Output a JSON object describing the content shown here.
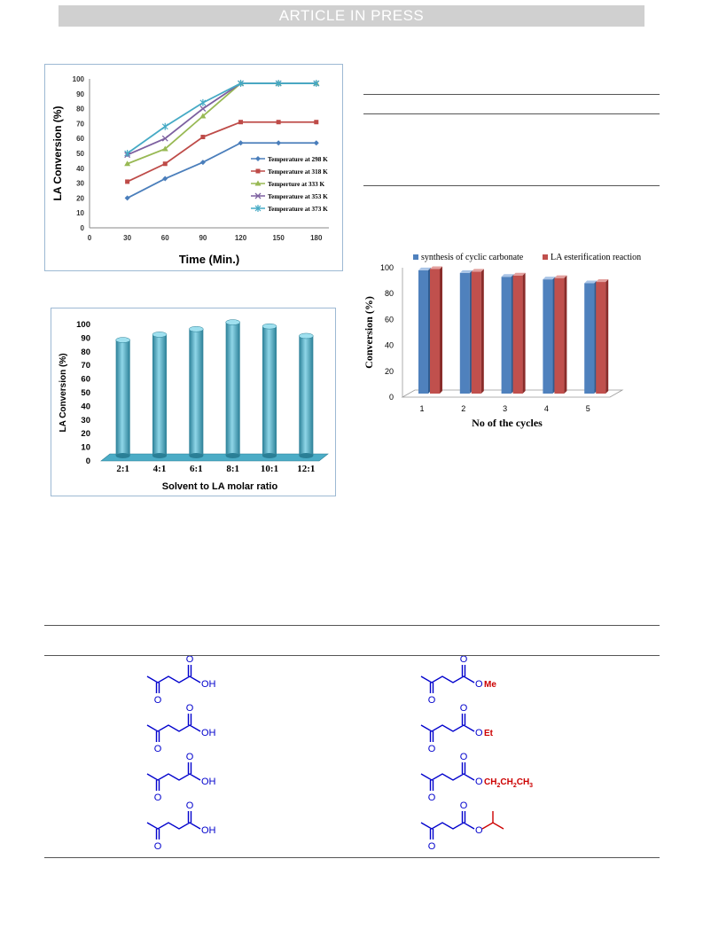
{
  "header": {
    "banner": "ARTICLE IN PRESS"
  },
  "chart_data": [
    {
      "type": "line",
      "xlabel": "Time (Min.)",
      "ylabel": "LA  Conversion (%)",
      "xlim": [
        0,
        190
      ],
      "ylim": [
        0,
        100
      ],
      "x": [
        30,
        60,
        90,
        120,
        150,
        180
      ],
      "xticks": [
        0,
        30,
        60,
        90,
        120,
        150,
        180
      ],
      "yticks": [
        0,
        10,
        20,
        30,
        40,
        50,
        60,
        70,
        80,
        90,
        100
      ],
      "legend_position": "center-right",
      "series": [
        {
          "name": "Temperature at 298 K",
          "color": "#4a7ebb",
          "marker": "diamond",
          "values": [
            20,
            33,
            44,
            57,
            57,
            57
          ]
        },
        {
          "name": "Temperature at 318 K",
          "color": "#be4b48",
          "marker": "square",
          "values": [
            31,
            43,
            61,
            71,
            71,
            71
          ]
        },
        {
          "name": "Temperture at 333 K",
          "color": "#98b954",
          "marker": "triangle",
          "values": [
            43,
            53,
            75,
            97,
            97,
            97
          ]
        },
        {
          "name": "Temperature at 353 K",
          "color": "#7d60a0",
          "marker": "x",
          "values": [
            49,
            60,
            80,
            97,
            97,
            97
          ]
        },
        {
          "name": "Temperature at 373 K",
          "color": "#46aac5",
          "marker": "star",
          "values": [
            50,
            68,
            84,
            97,
            97,
            97
          ]
        }
      ]
    },
    {
      "type": "bar",
      "xlabel": "Solvent to LA molar ratio",
      "ylabel": "LA Conversion (%)",
      "ylim": [
        0,
        100
      ],
      "yticks": [
        0,
        10,
        20,
        30,
        40,
        50,
        60,
        70,
        80,
        90,
        100
      ],
      "categories": [
        "2:1",
        "4:1",
        "6:1",
        "8:1",
        "10:1",
        "12:1"
      ],
      "values": [
        86,
        90,
        94,
        99,
        96,
        89
      ],
      "color": "#4bacc6"
    },
    {
      "type": "bar",
      "xlabel": "No of the cycles",
      "ylabel": "Conversion (%)",
      "ylim": [
        0,
        100
      ],
      "yticks": [
        0,
        20,
        40,
        60,
        80,
        100
      ],
      "categories": [
        "1",
        "2",
        "3",
        "4",
        "5"
      ],
      "legend_position": "top",
      "series": [
        {
          "name": "synthesis of cyclic carbonate",
          "color": "#4f81bd",
          "values": [
            98,
            96,
            93,
            91,
            88
          ]
        },
        {
          "name": "LA esterification reaction",
          "color": "#c0504d",
          "values": [
            99,
            97,
            94,
            92,
            89
          ]
        }
      ]
    }
  ],
  "structures": {
    "acid_label": "OH",
    "carbonyl_o": "O",
    "ester_o": "O",
    "esters": [
      "Me",
      "Et",
      "CH2CH2CH3",
      ""
    ],
    "propyl_parts": [
      "CH",
      "2",
      "CH",
      "2",
      "CH",
      "3"
    ],
    "colors": {
      "main": "#0000cc",
      "ester": "#cc0000"
    }
  }
}
